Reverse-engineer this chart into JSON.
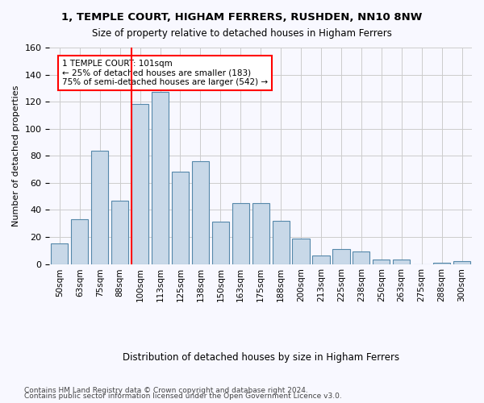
{
  "title": "1, TEMPLE COURT, HIGHAM FERRERS, RUSHDEN, NN10 8NW",
  "subtitle": "Size of property relative to detached houses in Higham Ferrers",
  "xlabel": "Distribution of detached houses by size in Higham Ferrers",
  "ylabel": "Number of detached properties",
  "categories": [
    "50sqm",
    "63sqm",
    "75sqm",
    "88sqm",
    "100sqm",
    "113sqm",
    "125sqm",
    "138sqm",
    "150sqm",
    "163sqm",
    "175sqm",
    "188sqm",
    "200sqm",
    "213sqm",
    "225sqm",
    "238sqm",
    "250sqm",
    "263sqm",
    "275sqm",
    "288sqm",
    "300sqm"
  ],
  "values": [
    15,
    33,
    84,
    47,
    118,
    127,
    68,
    76,
    31,
    45,
    45,
    32,
    19,
    6,
    11,
    9,
    3,
    3,
    0,
    1,
    2
  ],
  "bar_color": "#c8d8e8",
  "bar_edge_color": "#5588aa",
  "grid_color": "#cccccc",
  "vline_index": 4,
  "vline_color": "red",
  "annotation_text": "1 TEMPLE COURT: 101sqm\n← 25% of detached houses are smaller (183)\n75% of semi-detached houses are larger (542) →",
  "annotation_box_color": "white",
  "annotation_box_edge_color": "red",
  "ylim": [
    0,
    160
  ],
  "yticks": [
    0,
    20,
    40,
    60,
    80,
    100,
    120,
    140,
    160
  ],
  "footnote1": "Contains HM Land Registry data © Crown copyright and database right 2024.",
  "footnote2": "Contains public sector information licensed under the Open Government Licence v3.0.",
  "background_color": "#f8f8ff"
}
